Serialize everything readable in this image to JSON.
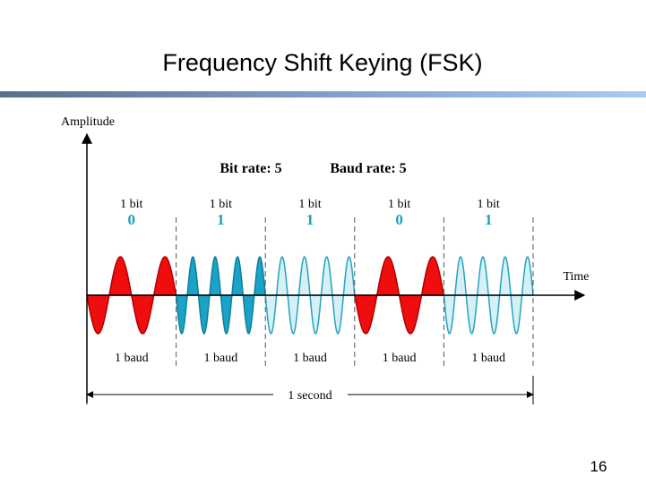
{
  "header": {
    "title": "Frequency Shift Keying (FSK)"
  },
  "diagram": {
    "y_axis_label": "Amplitude",
    "x_axis_label": "Time",
    "bit_rate": "Bit rate: 5",
    "baud_rate": "Baud rate: 5",
    "segments": [
      {
        "bit_label": "1 bit",
        "bit": "0",
        "baud_label": "1 baud"
      },
      {
        "bit_label": "1 bit",
        "bit": "1",
        "baud_label": "1 baud"
      },
      {
        "bit_label": "1 bit",
        "bit": "1",
        "baud_label": "1 baud"
      },
      {
        "bit_label": "1 bit",
        "bit": "0",
        "baud_label": "1 baud"
      },
      {
        "bit_label": "1 bit",
        "bit": "1",
        "baud_label": "1 baud"
      }
    ],
    "duration_label": "1 second"
  },
  "footer": {
    "page_number": "16"
  }
}
